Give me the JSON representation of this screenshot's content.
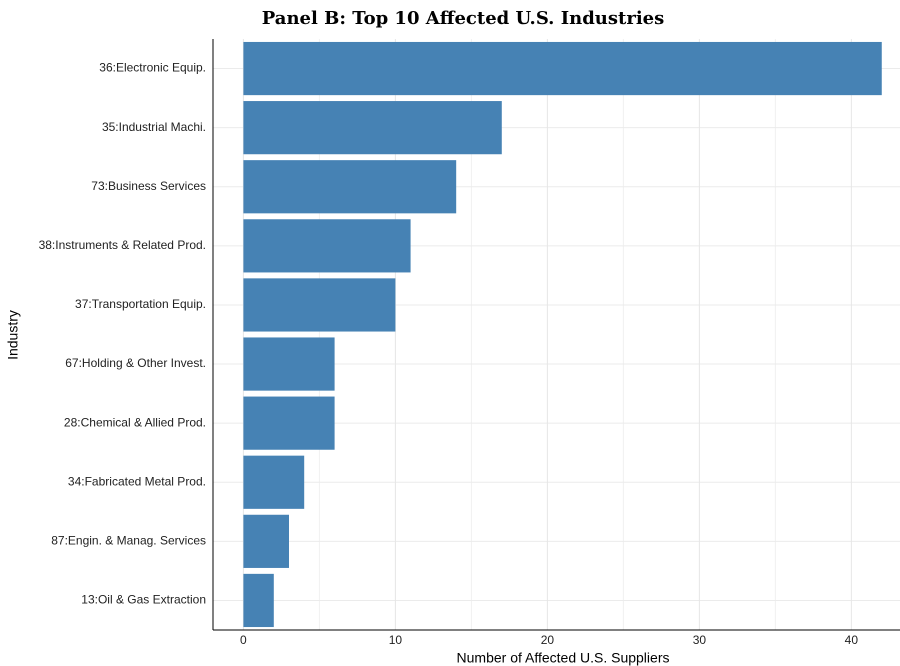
{
  "chart_data": {
    "type": "hbar",
    "title": "Panel B: Top 10 Affected U.S. Industries",
    "x_label": "Number of Affected U.S. Suppliers",
    "y_label": "Industry",
    "categories": [
      "36:Electronic Equip.",
      "35:Industrial Machi.",
      "73:Business Services",
      "38:Instruments & Related Prod.",
      "37:Transportation Equip.",
      "67:Holding & Other Invest.",
      "28:Chemical & Allied Prod.",
      "34:Fabricated Metal Prod.",
      "87:Engin. & Manag. Services",
      "13:Oil & Gas Extraction"
    ],
    "values": [
      42,
      17,
      14,
      11,
      10,
      6,
      6,
      4,
      3,
      2
    ],
    "color": "#4682b4",
    "xlim": [
      -2,
      43.2
    ],
    "xticks": [
      0,
      10,
      20,
      30,
      40
    ],
    "minor_xticks": [
      5,
      15,
      25,
      35
    ],
    "grid": true
  }
}
